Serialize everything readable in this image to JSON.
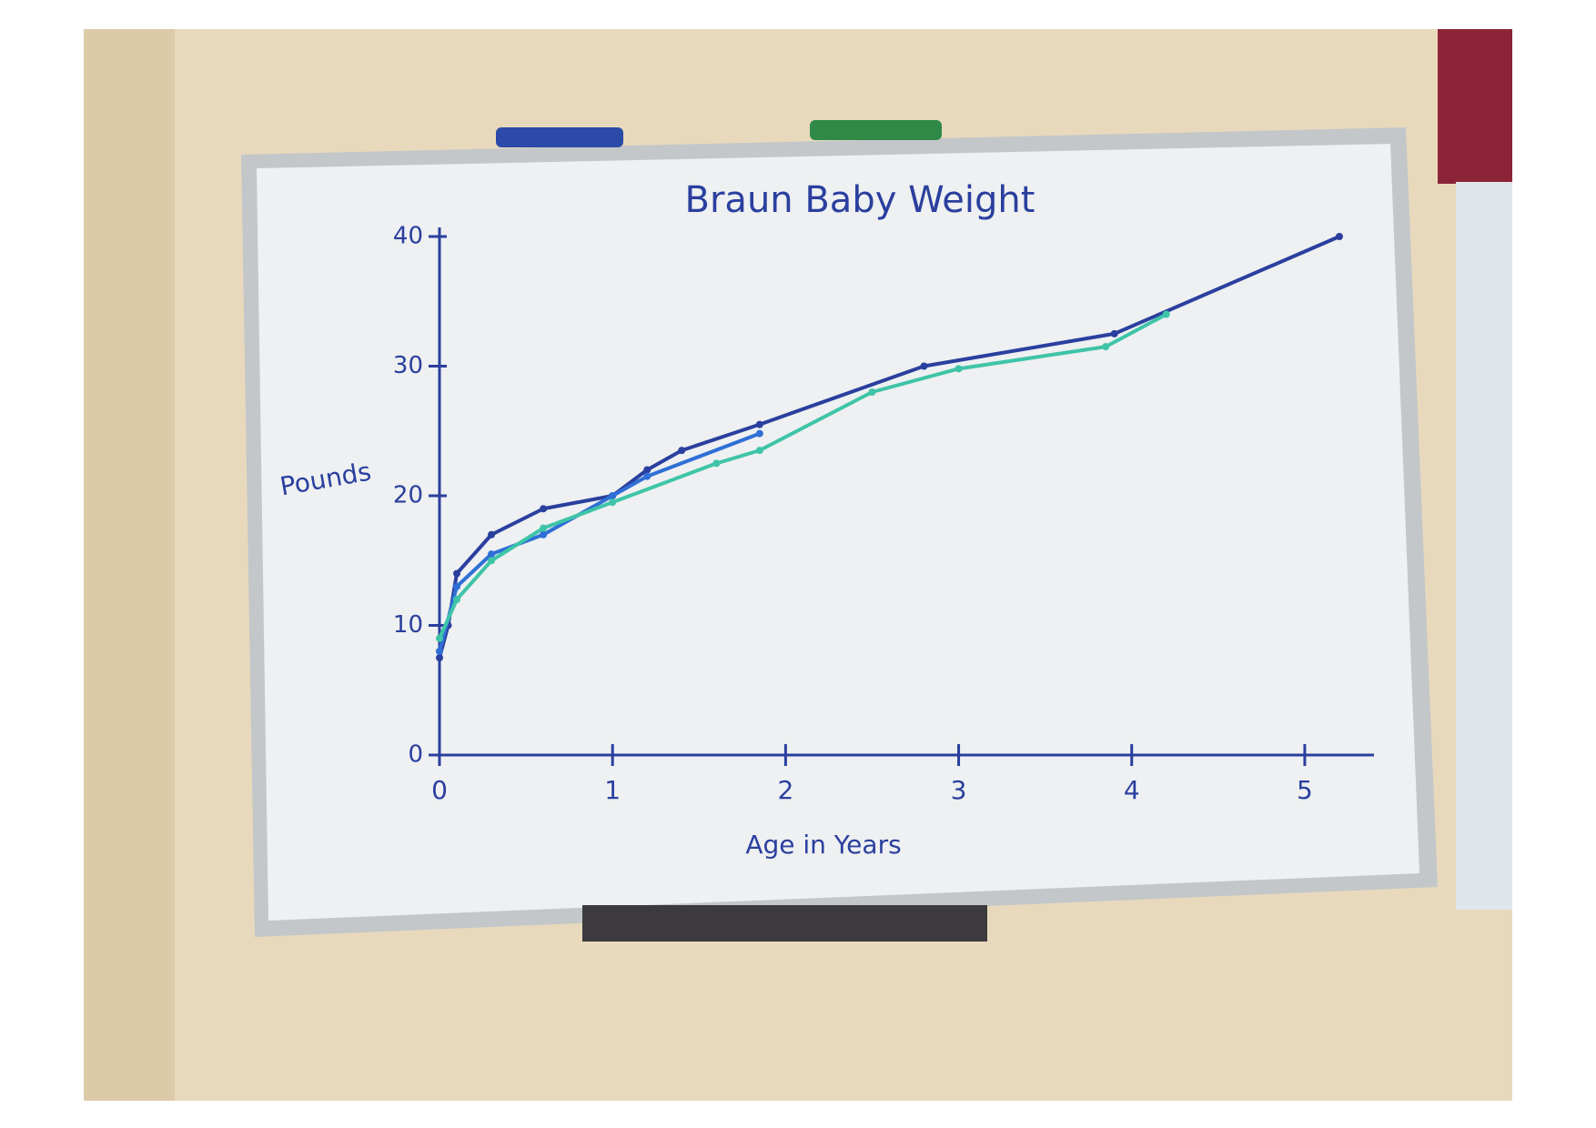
{
  "chart_data": {
    "type": "line",
    "title": "Braun Baby Weight",
    "x_label": "Age in Years",
    "y_label": "Pounds",
    "xlim": [
      0,
      5.4
    ],
    "xticks": [
      0,
      1,
      2,
      3,
      4,
      5
    ],
    "ylim": [
      0,
      40
    ],
    "yticks": [
      0,
      10,
      20,
      30,
      40
    ],
    "grid": false,
    "series": [
      {
        "color": "#2a3f9e",
        "x": [
          0,
          0.05,
          0.1,
          0.3,
          0.6,
          1,
          1.2,
          1.4,
          1.85,
          2.8,
          3.9,
          5.2
        ],
        "values": [
          7.5,
          10,
          14,
          17,
          19,
          20,
          22,
          23.5,
          25.5,
          30,
          32.5,
          40
        ]
      },
      {
        "color": "#2f6fd6",
        "x": [
          0,
          0.1,
          0.3,
          0.6,
          1,
          1.2,
          1.85
        ],
        "values": [
          8,
          13,
          15.5,
          17,
          20,
          21.5,
          24.8
        ]
      },
      {
        "color": "#3fc4a8",
        "x": [
          0,
          0.1,
          0.3,
          0.6,
          1,
          1.6,
          1.85,
          2.5,
          3,
          3.85,
          4.2
        ],
        "values": [
          9,
          12,
          15,
          17.5,
          19.5,
          22.5,
          23.5,
          28,
          29.8,
          31.5,
          34
        ]
      }
    ]
  }
}
